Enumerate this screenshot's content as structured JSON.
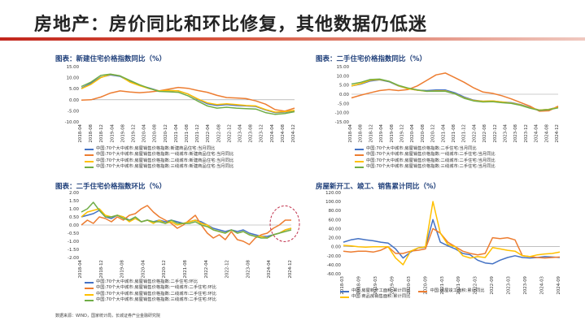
{
  "slide": {
    "title": "房地产：房价同比和环比修复，其他数据仍低迷",
    "source": "数据来源：WIND，国家统计局，长城证券产业金融研究院"
  },
  "colors": {
    "blue": "#4472c4",
    "orange": "#ed7d31",
    "gold": "#ffc000",
    "green": "#70ad47",
    "title_rule": "#c2261d",
    "panel_title": "#1f3f7a",
    "highlight_circle": "#c0304b"
  },
  "chart_data": [
    {
      "id": "new-home-yoy",
      "type": "line",
      "title": "图表：新建住宅价格指数同比（%）",
      "ylim": [
        -10,
        15
      ],
      "yticks": [
        "15.00",
        "10.00",
        "5.00",
        "0.00",
        "-5.00",
        "-10.00"
      ],
      "ytick_values": [
        15,
        10,
        5,
        0,
        -5,
        -10
      ],
      "xticks": [
        "2018-04",
        "2018-08",
        "2018-12",
        "2019-04",
        "2019-08",
        "2019-12",
        "2020-04",
        "2020-08",
        "2020-12",
        "2021-04",
        "2021-08",
        "2021-12",
        "2022-04",
        "2022-08",
        "2022-12",
        "2023-04",
        "2023-08",
        "2023-12",
        "2024-04",
        "2024-08",
        "2024-12"
      ],
      "series": [
        {
          "name": "中国:70个大中城市:房屋销售价格指数:新建商品住宅:当月同比",
          "color": "#4472c4",
          "values": [
            5.2,
            7.5,
            10.2,
            11.2,
            10.6,
            8.2,
            6.5,
            5.3,
            4.0,
            4.2,
            4.0,
            2.6,
            0.2,
            -1.8,
            -2.6,
            -2.2,
            -2.6,
            -2.8,
            -3.0,
            -4.6,
            -5.8,
            -5.6,
            -5.0
          ]
        },
        {
          "name": "中国:70个大中城市:房屋销售价格指数:一线城市:新建商品住宅:当月同比",
          "color": "#ed7d31",
          "values": [
            -0.2,
            0.0,
            1.2,
            3.0,
            4.0,
            3.5,
            3.2,
            3.5,
            4.0,
            4.8,
            5.6,
            5.2,
            4.2,
            3.4,
            2.0,
            1.0,
            0.8,
            0.5,
            -0.5,
            -2.0,
            -4.5,
            -5.2,
            -3.8
          ]
        },
        {
          "name": "中国:70个大中城市:房屋销售价格指数:二线城市:新建商品住宅:当月同比",
          "color": "#ffc000",
          "values": [
            5.0,
            7.0,
            10.0,
            11.5,
            10.8,
            8.0,
            6.4,
            5.0,
            4.0,
            4.2,
            4.0,
            2.6,
            0.4,
            -1.4,
            -2.2,
            -1.8,
            -2.2,
            -2.6,
            -2.8,
            -4.4,
            -5.6,
            -5.4,
            -4.8
          ]
        },
        {
          "name": "中国:70个大中城市:房屋销售价格指数:三线城市:新建商品住宅:当月同比",
          "color": "#70ad47",
          "values": [
            6.0,
            8.0,
            11.0,
            11.6,
            10.8,
            8.8,
            6.8,
            5.2,
            3.8,
            3.6,
            3.4,
            1.8,
            -0.6,
            -2.8,
            -3.8,
            -3.4,
            -3.8,
            -4.0,
            -4.2,
            -5.8,
            -6.6,
            -6.2,
            -5.4
          ]
        }
      ]
    },
    {
      "id": "second-hand-yoy",
      "type": "line",
      "title": "图表：二手住宅价格指数同比（%）",
      "ylim": [
        -15,
        15
      ],
      "yticks": [
        "15.00",
        "10.00",
        "5.00",
        "0.00",
        "-5.00",
        "-10.00",
        "-15.00"
      ],
      "ytick_values": [
        15,
        10,
        5,
        0,
        -5,
        -10,
        -15
      ],
      "xticks": [
        "2018-04",
        "2018-08",
        "2018-12",
        "2019-04",
        "2019-08",
        "2019-12",
        "2020-04",
        "2020-08",
        "2020-12",
        "2021-04",
        "2021-08",
        "2021-12",
        "2022-04",
        "2022-08",
        "2022-12",
        "2023-04",
        "2023-08",
        "2023-12",
        "2024-04",
        "2024-08",
        "2024-12"
      ],
      "series": [
        {
          "name": "中国:70个大中城市:房屋销售价格指数:二手住宅:当月同比",
          "color": "#4472c4",
          "values": [
            4.5,
            5.5,
            7.2,
            7.8,
            6.8,
            4.5,
            3.0,
            2.2,
            2.0,
            2.3,
            2.3,
            0.8,
            -1.5,
            -3.2,
            -3.8,
            -3.6,
            -4.2,
            -4.6,
            -5.6,
            -7.2,
            -8.6,
            -8.2,
            -7.0
          ]
        },
        {
          "name": "中国:70个大中城市:房屋销售价格指数:一线城市:二手住宅:当月同比",
          "color": "#ed7d31",
          "values": [
            -2.0,
            -0.5,
            0.8,
            2.0,
            2.5,
            2.0,
            2.5,
            4.5,
            7.5,
            10.5,
            11.5,
            9.0,
            6.5,
            3.5,
            1.2,
            0.5,
            -0.8,
            -2.5,
            -4.5,
            -6.5,
            -9.2,
            -9.0,
            -6.5
          ]
        },
        {
          "name": "中国:70个大中城市:房屋销售价格指数:二线城市:二手住宅:当月同比",
          "color": "#ffc000",
          "values": [
            4.5,
            5.8,
            7.6,
            8.0,
            7.0,
            4.6,
            3.0,
            2.2,
            1.6,
            1.8,
            1.8,
            0.3,
            -2.0,
            -3.4,
            -3.8,
            -3.6,
            -4.2,
            -4.8,
            -5.8,
            -7.4,
            -8.6,
            -8.2,
            -7.2
          ]
        },
        {
          "name": "中国:70个大中城市:房屋销售价格指数:三线城市:二手住宅:当月同比",
          "color": "#70ad47",
          "values": [
            5.5,
            6.5,
            8.0,
            8.2,
            7.0,
            4.8,
            3.4,
            2.4,
            1.6,
            1.6,
            1.6,
            0.2,
            -2.2,
            -3.6,
            -4.2,
            -4.0,
            -4.6,
            -5.0,
            -6.0,
            -7.6,
            -8.8,
            -8.4,
            -7.4
          ]
        }
      ]
    },
    {
      "id": "second-hand-mom",
      "type": "line",
      "title": "图表：二手住宅价格指数环比（%）",
      "ylim": [
        -2.0,
        2.0
      ],
      "yticks": [
        "2.00",
        "1.50",
        "1.00",
        "0.50",
        "0.00",
        "-0.50",
        "-1.00",
        "-1.50",
        "-2.00"
      ],
      "ytick_values": [
        2.0,
        1.5,
        1.0,
        0.5,
        0.0,
        -0.5,
        -1.0,
        -1.5,
        -2.0
      ],
      "xticks": [
        "2018-04",
        "2018-12",
        "2019-08",
        "2020-04",
        "2020-12",
        "2021-08",
        "2022-04",
        "2022-12",
        "2023-08",
        "2024-04",
        "2024-12"
      ],
      "series": [
        {
          "name": "中国:70个大中城市:房屋销售价格指数:二手住宅:环比",
          "color": "#4472c4",
          "values": [
            0.5,
            0.6,
            0.7,
            0.9,
            0.5,
            0.4,
            0.6,
            0.5,
            0.3,
            0.4,
            0.2,
            0.3,
            0.2,
            0.3,
            0.2,
            0.3,
            0.2,
            0.1,
            0.2,
            0.3,
            0.2,
            0.0,
            -0.2,
            -0.3,
            -0.4,
            -0.3,
            -0.4,
            -0.3,
            -0.5,
            -0.6,
            -0.7,
            -0.7,
            -0.6,
            -0.5,
            -0.3,
            -0.2
          ]
        },
        {
          "name": "中国:70个大中城市:房屋销售价格指数:一线城市:二手住宅:环比",
          "color": "#ed7d31",
          "values": [
            0.0,
            0.3,
            0.1,
            0.5,
            0.4,
            0.2,
            0.5,
            0.3,
            0.6,
            0.7,
            1.0,
            1.2,
            0.8,
            0.5,
            0.3,
            0.1,
            -0.2,
            0.0,
            0.3,
            0.6,
            0.0,
            -0.5,
            -0.8,
            -0.6,
            -0.9,
            -0.4,
            -0.9,
            -1.0,
            -1.2,
            -0.8,
            -0.6,
            -0.5,
            -0.2,
            0.0,
            0.3,
            0.3
          ]
        },
        {
          "name": "中国:70个大中城市:房屋销售价格指数:二线城市:二手住宅:环比",
          "color": "#ffc000",
          "values": [
            0.5,
            0.8,
            0.9,
            1.0,
            0.6,
            0.5,
            0.6,
            0.5,
            0.2,
            0.4,
            0.2,
            0.3,
            0.1,
            0.3,
            0.1,
            0.2,
            0.0,
            0.1,
            0.2,
            0.3,
            0.1,
            0.0,
            -0.3,
            -0.4,
            -0.5,
            -0.3,
            -0.5,
            -0.4,
            -0.6,
            -0.7,
            -0.7,
            -0.8,
            -0.6,
            -0.5,
            -0.3,
            -0.2
          ]
        },
        {
          "name": "中国:70个大中城市:房屋销售价格指数:三线城市:二手住宅:环比",
          "color": "#70ad47",
          "values": [
            0.8,
            1.0,
            1.4,
            0.9,
            0.5,
            0.5,
            0.6,
            0.4,
            0.3,
            0.5,
            0.2,
            0.3,
            0.2,
            0.2,
            0.1,
            0.3,
            0.1,
            0.1,
            0.1,
            0.2,
            0.0,
            -0.1,
            -0.3,
            -0.4,
            -0.5,
            -0.3,
            -0.5,
            -0.4,
            -0.6,
            -0.7,
            -0.8,
            -0.8,
            -0.6,
            -0.5,
            -0.4,
            -0.3
          ]
        }
      ]
    },
    {
      "id": "construction-sales",
      "type": "line",
      "title": "房屋新开工、竣工、销售累计同比（%）",
      "ylim": [
        -60,
        120
      ],
      "yticks": [
        "120.00",
        "100.00",
        "80.00",
        "60.00",
        "40.00",
        "20.00",
        "0.00",
        "-20.00",
        "-40.00",
        "-60.00"
      ],
      "ytick_values": [
        120,
        100,
        80,
        60,
        40,
        20,
        0,
        -20,
        -40,
        -60
      ],
      "xticks": [
        "2018-03",
        "2018-09",
        "2019-03",
        "2019-09",
        "2020-03",
        "2020-09",
        "2021-03",
        "2021-09",
        "2022-03",
        "2022-09",
        "2023-03",
        "2023-09",
        "2024-03",
        "2024-09"
      ],
      "series": [
        {
          "name": "中国:房屋新开工面积:累计同比",
          "color": "#4472c4",
          "values": [
            10,
            15,
            18,
            15,
            13,
            10,
            8,
            -5,
            -25,
            -12,
            -3,
            -1,
            60,
            10,
            2,
            -5,
            -15,
            -18,
            -30,
            -36,
            -38,
            -30,
            -24,
            -20,
            -24,
            -25,
            -24,
            -22,
            -23,
            -24
          ]
        },
        {
          "name": "中国:房屋竣工面积:累计同比",
          "color": "#ed7d31",
          "values": [
            -10,
            -12,
            -10,
            -10,
            -12,
            -8,
            0,
            -15,
            -15,
            -10,
            -8,
            -5,
            40,
            30,
            10,
            0,
            -10,
            -15,
            -18,
            -15,
            20,
            18,
            20,
            15,
            -20,
            -22,
            -24,
            -25,
            -24,
            -23
          ]
        },
        {
          "name": "中国:商品房销售面积:累计同比",
          "color": "#ffc000",
          "values": [
            3,
            2,
            0,
            -1,
            0,
            0,
            0,
            -25,
            -40,
            -10,
            -3,
            0,
            100,
            30,
            5,
            0,
            -20,
            -25,
            -22,
            -24,
            -2,
            -5,
            -8,
            -10,
            -20,
            -22,
            -18,
            -16,
            -15,
            -12
          ]
        }
      ]
    }
  ]
}
